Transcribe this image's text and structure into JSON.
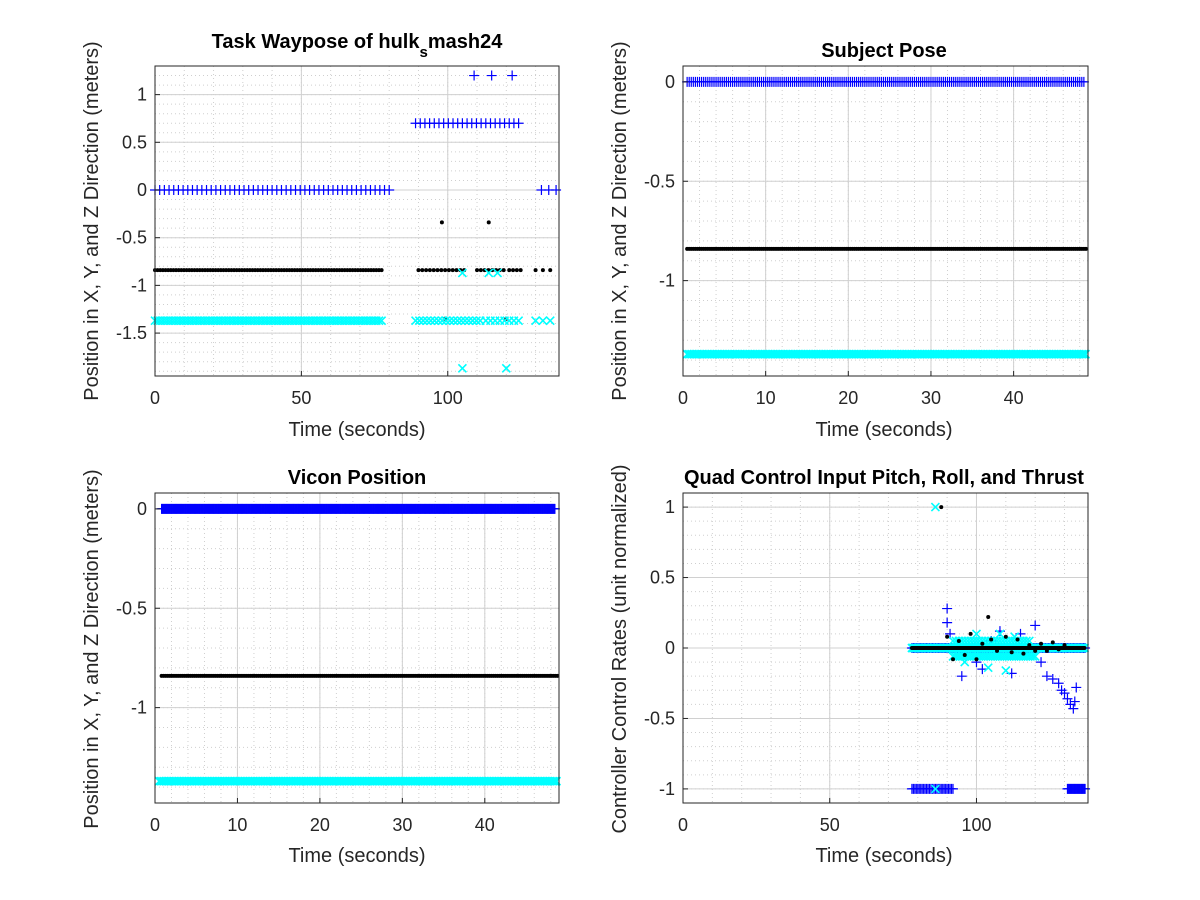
{
  "figure": {
    "colors": {
      "x_series": "#0000ff",
      "y_series": "#00ffff",
      "z_series": "#000000",
      "axes": "#262626",
      "grid": "#d0d0d0"
    }
  },
  "chart_data": [
    {
      "id": "task-waypose",
      "type": "scatter",
      "title_main": "Task Waypose of hulk",
      "title_sub": "s",
      "title_tail": "mash24",
      "xlabel": "Time (seconds)",
      "ylabel": "Position in X, Y, and Z Direction (meters)",
      "xlim": [
        0,
        138
      ],
      "ylim": [
        -1.95,
        1.3
      ],
      "xticks": [
        0,
        50,
        100
      ],
      "yticks": [
        1,
        0.5,
        0,
        -0.5,
        -1,
        -1.5
      ],
      "ytick_labels": [
        "1",
        "0.5",
        "0",
        "-0.5",
        "-1",
        "-1.5"
      ],
      "grid": true,
      "minor_grid": true,
      "series": [
        {
          "marker": "plus",
          "color": "#0000ff",
          "segments": [
            {
              "x0": 0,
              "x1": 80,
              "step": 1.6,
              "y": 0
            },
            {
              "x0": 89,
              "x1": 125,
              "step": 1.6,
              "y": 0.7
            },
            {
              "x0": 132,
              "x1": 137,
              "step": 2.5,
              "y": 0
            }
          ],
          "points": [
            [
              109,
              1.2
            ],
            [
              115,
              1.2
            ],
            [
              122,
              1.2
            ]
          ]
        },
        {
          "marker": "dot",
          "color": "#000000",
          "segments": [
            {
              "x0": 0,
              "x1": 78,
              "step": 0.9,
              "y": -0.84
            },
            {
              "x0": 90,
              "x1": 106,
              "step": 1.3,
              "y": -0.84
            },
            {
              "x0": 110,
              "x1": 120,
              "step": 1.3,
              "y": -0.84
            },
            {
              "x0": 121,
              "x1": 125,
              "step": 1.3,
              "y": -0.84
            },
            {
              "x0": 130,
              "x1": 137,
              "step": 2.5,
              "y": -0.84
            }
          ],
          "points": [
            [
              98,
              -0.34
            ],
            [
              114,
              -0.34
            ],
            [
              99,
              -1.35
            ],
            [
              120,
              -1.35
            ]
          ]
        },
        {
          "marker": "cross",
          "color": "#00ffff",
          "segments": [
            {
              "x0": 0,
              "x1": 78,
              "step": 0.9,
              "y": -1.37
            },
            {
              "x0": 89,
              "x1": 112,
              "step": 1.3,
              "y": -1.37
            },
            {
              "x0": 113,
              "x1": 125,
              "step": 1.6,
              "y": -1.37
            },
            {
              "x0": 130,
              "x1": 137,
              "step": 2.5,
              "y": -1.37
            }
          ],
          "points": [
            [
              105,
              -0.87
            ],
            [
              114,
              -0.87
            ],
            [
              117,
              -0.87
            ],
            [
              105,
              -1.87
            ],
            [
              120,
              -1.87
            ]
          ]
        }
      ]
    },
    {
      "id": "subject-pose",
      "type": "scatter",
      "title_main": "Subject Pose",
      "xlabel": "Time (seconds)",
      "ylabel": "Position in X, Y, and Z Direction (meters)",
      "xlim": [
        0,
        49
      ],
      "ylim": [
        -1.48,
        0.08
      ],
      "xticks": [
        0,
        10,
        20,
        30,
        40
      ],
      "yticks": [
        0,
        -0.5,
        -1
      ],
      "ytick_labels": [
        "0",
        "-0.5",
        "-1"
      ],
      "grid": true,
      "minor_grid": true,
      "series": [
        {
          "marker": "plus",
          "color": "#0000ff",
          "segments": [
            {
              "x0": 0.5,
              "x1": 48.5,
              "step": 0.25,
              "y": 0
            }
          ],
          "points": []
        },
        {
          "marker": "dot",
          "color": "#000000",
          "segments": [
            {
              "x0": 0.5,
              "x1": 48.8,
              "step": 0.25,
              "y": -0.84
            }
          ],
          "points": []
        },
        {
          "marker": "cross",
          "color": "#00ffff",
          "segments": [
            {
              "x0": 0.5,
              "x1": 48.8,
              "step": 0.2,
              "y": -1.37
            }
          ],
          "points": []
        }
      ]
    },
    {
      "id": "vicon-position",
      "type": "scatter",
      "title_main": "Vicon Position",
      "xlabel": "Time (seconds)",
      "ylabel": "Position in X, Y, and Z Direction (meters)",
      "xlim": [
        0,
        49
      ],
      "ylim": [
        -1.48,
        0.08
      ],
      "xticks": [
        0,
        10,
        20,
        30,
        40
      ],
      "yticks": [
        0,
        -0.5,
        -1
      ],
      "ytick_labels": [
        "0",
        "-0.5",
        "-1"
      ],
      "grid": true,
      "minor_grid": true,
      "series": [
        {
          "marker": "plus",
          "color": "#0000ff",
          "segments": [
            {
              "x0": 0.8,
              "x1": 48.5,
              "step": 0.1,
              "y": 0
            }
          ],
          "points": []
        },
        {
          "marker": "dot",
          "color": "#000000",
          "segments": [
            {
              "x0": 0.8,
              "x1": 48.8,
              "step": 0.25,
              "y": -0.84
            }
          ],
          "points": []
        },
        {
          "marker": "cross",
          "color": "#00ffff",
          "segments": [
            {
              "x0": 0.5,
              "x1": 48.8,
              "step": 0.2,
              "y": -1.37
            }
          ],
          "points": []
        }
      ]
    },
    {
      "id": "quad-control-input",
      "type": "scatter",
      "title_main": "Quad Control Input Pitch, Roll, and Thrust",
      "xlabel": "Time (seconds)",
      "ylabel": "Controller Control Rates (unit normalized)",
      "xlim": [
        0,
        138
      ],
      "ylim": [
        -1.1,
        1.1
      ],
      "xticks": [
        0,
        50,
        100
      ],
      "yticks": [
        1,
        0.5,
        0,
        -0.5,
        -1
      ],
      "ytick_labels": [
        "1",
        "0.5",
        "0",
        "-0.5",
        "-1"
      ],
      "grid": true,
      "minor_grid": true,
      "series": [
        {
          "marker": "plus",
          "color": "#0000ff",
          "segments": [
            {
              "x0": 78,
              "x1": 92,
              "step": 0.5,
              "y": -1
            },
            {
              "x0": 131,
              "x1": 137,
              "step": 0.3,
              "y": -1
            },
            {
              "x0": 78,
              "x1": 137,
              "step": 0.5,
              "y": 0
            }
          ],
          "points": [
            [
              90,
              0.28
            ],
            [
              90,
              0.18
            ],
            [
              91,
              0.1
            ],
            [
              95,
              -0.2
            ],
            [
              100,
              -0.1
            ],
            [
              102,
              -0.15
            ],
            [
              105,
              0.05
            ],
            [
              108,
              0.12
            ],
            [
              112,
              -0.18
            ],
            [
              115,
              0.1
            ],
            [
              118,
              -0.05
            ],
            [
              120,
              0.16
            ],
            [
              122,
              -0.1
            ],
            [
              124,
              -0.2
            ],
            [
              126,
              -0.22
            ],
            [
              128,
              -0.25
            ],
            [
              129,
              -0.3
            ],
            [
              130,
              -0.32
            ],
            [
              131,
              -0.36
            ],
            [
              132,
              -0.4
            ],
            [
              133,
              -0.43
            ],
            [
              133.5,
              -0.38
            ],
            [
              134,
              -0.28
            ]
          ]
        },
        {
          "marker": "cross",
          "color": "#00ffff",
          "segments": [
            {
              "x0": 78,
              "x1": 137,
              "step": 0.4,
              "y": 0
            },
            {
              "x0": 92,
              "x1": 120,
              "step": 0.8,
              "y": -0.06
            },
            {
              "x0": 92,
              "x1": 118,
              "step": 1.0,
              "y": 0.05
            }
          ],
          "points": [
            [
              86,
              1.0
            ],
            [
              86,
              -1.0
            ],
            [
              96,
              -0.1
            ],
            [
              100,
              0.1
            ],
            [
              104,
              -0.14
            ],
            [
              108,
              0.1
            ],
            [
              110,
              -0.16
            ],
            [
              113,
              0.08
            ]
          ]
        },
        {
          "marker": "dot",
          "color": "#000000",
          "segments": [
            {
              "x0": 78,
              "x1": 137,
              "step": 0.4,
              "y": 0
            }
          ],
          "points": [
            [
              88,
              1.0
            ],
            [
              90,
              0.08
            ],
            [
              92,
              -0.08
            ],
            [
              94,
              0.05
            ],
            [
              96,
              -0.05
            ],
            [
              98,
              0.1
            ],
            [
              100,
              -0.08
            ],
            [
              102,
              0.03
            ],
            [
              104,
              0.22
            ],
            [
              105,
              0.06
            ],
            [
              107,
              -0.02
            ],
            [
              110,
              0.08
            ],
            [
              112,
              -0.03
            ],
            [
              114,
              0.06
            ],
            [
              116,
              -0.04
            ],
            [
              118,
              0.02
            ],
            [
              120,
              -0.02
            ],
            [
              122,
              0.03
            ],
            [
              124,
              -0.02
            ],
            [
              126,
              0.04
            ],
            [
              128,
              -0.01
            ],
            [
              130,
              0.02
            ]
          ]
        }
      ]
    }
  ]
}
